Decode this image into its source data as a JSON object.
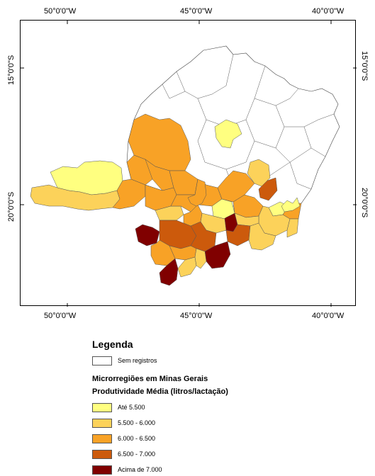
{
  "map": {
    "top_ticks": [
      "50°0'0\"W",
      "45°0'0\"W",
      "40°0'0\"W"
    ],
    "bottom_ticks": [
      "50°0'0\"W",
      "45°0'0\"W",
      "40°0'0\"W"
    ],
    "left_ticks": [
      "15°0'0\"S",
      "20°0'0\"S"
    ],
    "right_ticks": [
      "15°0'0\"S",
      "20°0'0\"S"
    ]
  },
  "legend": {
    "title": "Legenda",
    "no_data_label": "Sem registros",
    "heading1": "Microrregiões em Minas Gerais",
    "heading2": "Produtividade Média (litros/lactação)",
    "classes": [
      {
        "label": "Até 5.500",
        "color": "#ffff80"
      },
      {
        "label": "5.500 - 6.000",
        "color": "#fcd25a"
      },
      {
        "label": "6.000 - 6.500",
        "color": "#f8a226"
      },
      {
        "label": "6.500 - 7.000",
        "color": "#cc5a0c"
      },
      {
        "label": "Acima de 7.000",
        "color": "#800000"
      }
    ]
  }
}
